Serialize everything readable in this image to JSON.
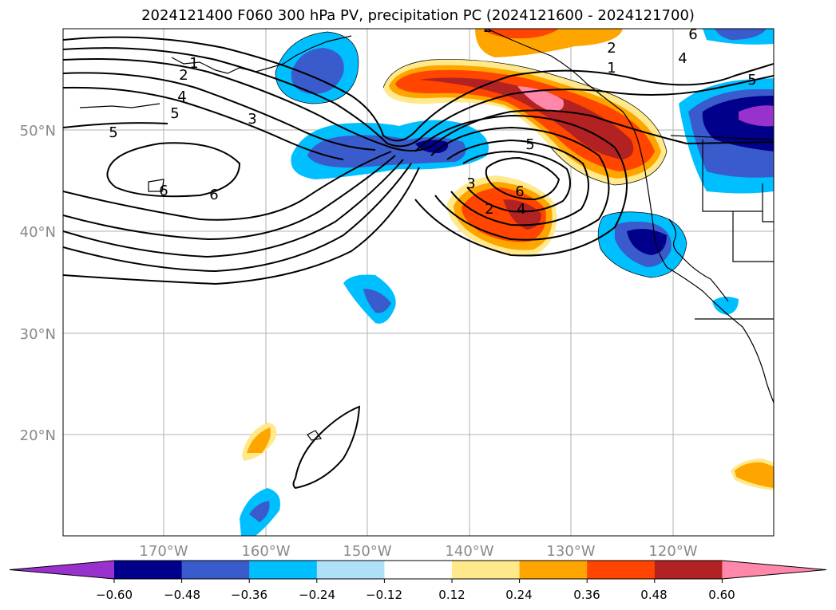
{
  "title": "2024121400 F060 300 hPa PV, precipitation PC (2024121600 - 2024121700)",
  "map": {
    "lon_labels": [
      "170°W",
      "160°W",
      "150°W",
      "140°W",
      "130°W",
      "120°W"
    ],
    "lat_labels": [
      "50°N",
      "40°N",
      "30°N",
      "20°N"
    ],
    "contour_labels": [
      "1",
      "2",
      "3",
      "4",
      "5",
      "6",
      "1",
      "2",
      "4",
      "5",
      "6",
      "2",
      "4",
      "6",
      "3",
      "5",
      "6",
      "5",
      "2"
    ]
  },
  "colorbar": {
    "tick_labels": [
      "−0.60",
      "−0.48",
      "−0.36",
      "−0.24",
      "−0.12",
      "0.12",
      "0.24",
      "0.36",
      "0.48",
      "0.60"
    ],
    "colors": [
      "#9932cc",
      "#00008b",
      "#3a5bcc",
      "#00bfff",
      "#aee0f7",
      "#ffffff",
      "#ffe98a",
      "#ffa500",
      "#ff4500",
      "#b22222",
      "#ff88aa"
    ]
  }
}
